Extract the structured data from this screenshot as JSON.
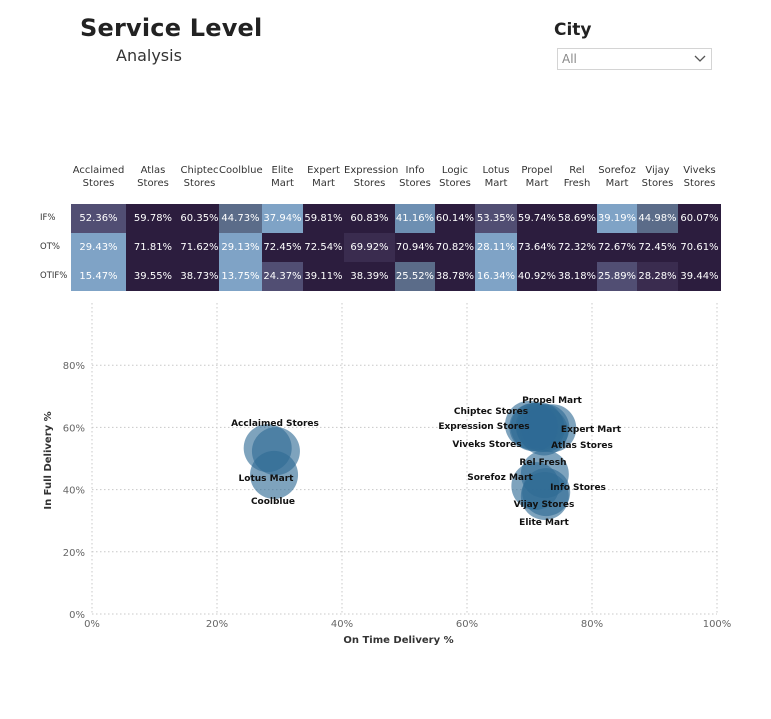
{
  "header": {
    "title": "Service Level",
    "subtitle": "Analysis"
  },
  "slicer": {
    "label": "City",
    "value": "All"
  },
  "matrix": {
    "columns": [
      {
        "line1": "Acclaimed",
        "line2": "Stores"
      },
      {
        "line1": "Atlas",
        "line2": "Stores"
      },
      {
        "line1": "Chiptec",
        "line2": "Stores"
      },
      {
        "line1": "Coolblue",
        "line2": ""
      },
      {
        "line1": "Elite",
        "line2": "Mart"
      },
      {
        "line1": "Expert",
        "line2": "Mart"
      },
      {
        "line1": "Expression",
        "line2": "Stores"
      },
      {
        "line1": "Info",
        "line2": "Stores"
      },
      {
        "line1": "Logic",
        "line2": "Stores"
      },
      {
        "line1": "Lotus",
        "line2": "Mart"
      },
      {
        "line1": "Propel",
        "line2": "Mart"
      },
      {
        "line1": "Rel",
        "line2": "Fresh"
      },
      {
        "line1": "Sorefoz",
        "line2": "Mart"
      },
      {
        "line1": "Vijay",
        "line2": "Stores"
      },
      {
        "line1": "Viveks",
        "line2": "Stores"
      }
    ],
    "rows": [
      {
        "label": "IF%",
        "cells": [
          "52.36%",
          "59.78%",
          "60.35%",
          "44.73%",
          "37.94%",
          "59.81%",
          "60.83%",
          "41.16%",
          "60.14%",
          "53.35%",
          "59.74%",
          "58.69%",
          "39.19%",
          "44.98%",
          "60.07%"
        ]
      },
      {
        "label": "OT%",
        "cells": [
          "29.43%",
          "71.81%",
          "71.62%",
          "29.13%",
          "72.45%",
          "72.54%",
          "69.92%",
          "70.94%",
          "70.82%",
          "28.11%",
          "73.64%",
          "72.32%",
          "72.67%",
          "72.45%",
          "70.61%"
        ]
      },
      {
        "label": "OTIF%",
        "cells": [
          "15.47%",
          "39.55%",
          "38.73%",
          "13.75%",
          "24.37%",
          "39.11%",
          "38.39%",
          "25.52%",
          "38.78%",
          "16.34%",
          "40.92%",
          "38.18%",
          "25.89%",
          "28.28%",
          "39.44%"
        ]
      }
    ],
    "cell_colors": [
      [
        "#514e73",
        "#2c1d3e",
        "#2c1d3e",
        "#5b6c89",
        "#7fa3c6",
        "#2c1d3e",
        "#2c1d3e",
        "#6d8fb2",
        "#2c1d3e",
        "#514e73",
        "#2c1d3e",
        "#2c1d3e",
        "#7fa3c6",
        "#5b6c89",
        "#2c1d3e"
      ],
      [
        "#7fa3c6",
        "#2c1d3e",
        "#2c1d3e",
        "#7fa3c6",
        "#2c1d3e",
        "#2c1d3e",
        "#3a2c4f",
        "#2c1d3e",
        "#2c1d3e",
        "#7fa3c6",
        "#2c1d3e",
        "#2c1d3e",
        "#2c1d3e",
        "#2c1d3e",
        "#2c1d3e"
      ],
      [
        "#7fa3c6",
        "#2c1d3e",
        "#2c1d3e",
        "#7fa3c6",
        "#514e73",
        "#2c1d3e",
        "#2c1d3e",
        "#5b6c89",
        "#2c1d3e",
        "#7fa3c6",
        "#2c1d3e",
        "#2c1d3e",
        "#514e73",
        "#3a2c4f",
        "#2c1d3e"
      ]
    ]
  },
  "chart_data": {
    "type": "scatter",
    "xlabel": "On Time Delivery %",
    "ylabel": "In Full Delivery %",
    "xlim": [
      0,
      100
    ],
    "ylim": [
      0,
      100
    ],
    "xticks": [
      "0%",
      "20%",
      "40%",
      "60%",
      "80%",
      "100%"
    ],
    "yticks": [
      "0%",
      "20%",
      "40%",
      "60%",
      "80%"
    ],
    "grid": true,
    "point_color": "#2e6b94",
    "points": [
      {
        "name": "Acclaimed Stores",
        "x": 29.43,
        "y": 52.36
      },
      {
        "name": "Atlas Stores",
        "x": 71.81,
        "y": 59.78
      },
      {
        "name": "Chiptec Stores",
        "x": 71.62,
        "y": 60.35
      },
      {
        "name": "Coolblue",
        "x": 29.13,
        "y": 44.73
      },
      {
        "name": "Elite Mart",
        "x": 72.45,
        "y": 37.94
      },
      {
        "name": "Expert Mart",
        "x": 72.54,
        "y": 59.81
      },
      {
        "name": "Expression Stores",
        "x": 69.92,
        "y": 60.83
      },
      {
        "name": "Info Stores",
        "x": 70.94,
        "y": 41.16
      },
      {
        "name": "Logic Stores",
        "x": 70.82,
        "y": 60.14
      },
      {
        "name": "Lotus Mart",
        "x": 28.11,
        "y": 53.35
      },
      {
        "name": "Propel Mart",
        "x": 73.64,
        "y": 59.74
      },
      {
        "name": "Rel Fresh",
        "x": 72.32,
        "y": 58.69
      },
      {
        "name": "Sorefoz Mart",
        "x": 72.67,
        "y": 39.19
      },
      {
        "name": "Vijay Stores",
        "x": 72.45,
        "y": 44.98
      },
      {
        "name": "Viveks Stores",
        "x": 70.61,
        "y": 60.07
      }
    ],
    "labels": [
      {
        "text": "Acclaimed Stores"
      },
      {
        "text": "Lotus Mart"
      },
      {
        "text": "Coolblue"
      },
      {
        "text": "Propel Mart"
      },
      {
        "text": "Chiptec Stores"
      },
      {
        "text": "Expression Stores"
      },
      {
        "text": "Expert Mart"
      },
      {
        "text": "Viveks Stores"
      },
      {
        "text": "Atlas Stores"
      },
      {
        "text": "Rel Fresh"
      },
      {
        "text": "Sorefoz Mart"
      },
      {
        "text": "Info Stores"
      },
      {
        "text": "Vijay Stores"
      },
      {
        "text": "Elite Mart"
      }
    ]
  }
}
